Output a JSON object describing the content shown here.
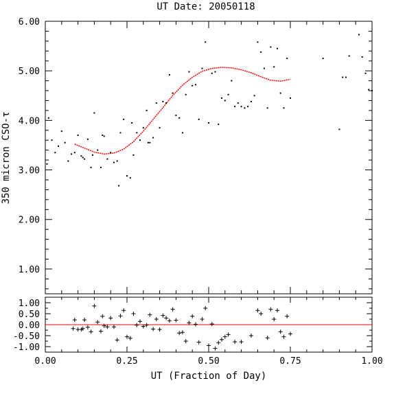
{
  "chart_data": [
    {
      "type": "scatter",
      "title": "UT Date: 20050118",
      "ylabel": "350 micron CSO-τ",
      "xlim": [
        0,
        1
      ],
      "ylim": [
        0.5,
        6.0
      ],
      "yticks": [
        "1.00",
        "2.00",
        "3.00",
        "4.00",
        "5.00",
        "6.00"
      ],
      "series": [
        {
          "mark": "dot",
          "x": [
            0.005,
            0.01,
            0.02,
            0.03,
            0.04,
            0.05,
            0.06,
            0.07,
            0.08,
            0.09,
            0.1,
            0.11,
            0.115,
            0.12,
            0.13,
            0.14,
            0.145,
            0.15,
            0.16,
            0.17,
            0.175,
            0.18,
            0.19,
            0.2,
            0.21,
            0.22,
            0.225,
            0.23,
            0.24,
            0.25,
            0.26,
            0.265,
            0.27,
            0.28,
            0.29,
            0.3,
            0.31,
            0.315,
            0.32,
            0.33,
            0.34,
            0.35,
            0.36,
            0.37,
            0.38,
            0.39,
            0.4,
            0.41,
            0.42,
            0.43,
            0.44,
            0.45,
            0.46,
            0.47,
            0.48,
            0.49,
            0.5,
            0.51,
            0.52,
            0.53,
            0.54,
            0.55,
            0.56,
            0.57,
            0.58,
            0.59,
            0.6,
            0.61,
            0.62,
            0.63,
            0.64,
            0.65,
            0.66,
            0.67,
            0.68,
            0.69,
            0.7,
            0.71,
            0.72,
            0.73,
            0.74,
            0.75,
            0.85,
            0.9,
            0.91,
            0.92,
            0.93,
            0.96,
            0.97,
            0.98,
            0.99,
            1.0
          ],
          "y": [
            3.12,
            4.05,
            3.6,
            3.35,
            3.48,
            3.78,
            3.55,
            3.18,
            3.32,
            3.35,
            3.7,
            3.28,
            3.25,
            3.22,
            3.62,
            3.05,
            3.3,
            4.15,
            3.4,
            3.05,
            3.7,
            3.68,
            3.22,
            3.35,
            3.15,
            3.18,
            2.68,
            3.75,
            4.02,
            2.88,
            2.84,
            3.95,
            3.3,
            3.75,
            3.6,
            3.85,
            4.2,
            3.55,
            3.55,
            3.65,
            4.35,
            3.85,
            4.38,
            4.35,
            4.92,
            4.55,
            4.1,
            4.05,
            3.75,
            4.52,
            4.98,
            4.7,
            4.72,
            4.02,
            5.05,
            5.58,
            3.95,
            4.95,
            4.98,
            3.92,
            4.45,
            4.4,
            4.52,
            4.8,
            4.28,
            4.35,
            4.28,
            4.25,
            4.28,
            4.38,
            4.5,
            5.58,
            5.38,
            5.05,
            4.25,
            5.48,
            5.08,
            5.45,
            4.55,
            4.25,
            5.25,
            4.45,
            5.25,
            3.82,
            4.87,
            4.87,
            5.3,
            5.73,
            5.28,
            4.95,
            4.62,
            4.6
          ]
        },
        {
          "mark": "fit-curve",
          "color": "#ff0000",
          "x": [
            0.09,
            0.12,
            0.15,
            0.18,
            0.21,
            0.24,
            0.27,
            0.3,
            0.33,
            0.36,
            0.39,
            0.42,
            0.45,
            0.48,
            0.51,
            0.54,
            0.57,
            0.6,
            0.63,
            0.66,
            0.69,
            0.72,
            0.75
          ],
          "y": [
            3.52,
            3.44,
            3.36,
            3.32,
            3.34,
            3.42,
            3.57,
            3.78,
            4.02,
            4.26,
            4.5,
            4.71,
            4.87,
            4.99,
            5.05,
            5.07,
            5.06,
            5.02,
            4.96,
            4.88,
            4.81,
            4.79,
            4.83
          ]
        }
      ]
    },
    {
      "type": "scatter",
      "xlabel": "UT (Fraction of Day)",
      "xlim": [
        0,
        1
      ],
      "ylim": [
        -1.25,
        1.25
      ],
      "xticks": [
        "0.00",
        "0.25",
        "0.50",
        "0.75",
        "1.00"
      ],
      "yticks": [
        "-1.00",
        "-0.50",
        "0.00",
        "0.50",
        "1.00"
      ],
      "series": [
        {
          "mark": "plus",
          "x": [
            0.085,
            0.09,
            0.1,
            0.11,
            0.115,
            0.12,
            0.13,
            0.14,
            0.15,
            0.16,
            0.17,
            0.175,
            0.18,
            0.19,
            0.2,
            0.21,
            0.22,
            0.23,
            0.24,
            0.25,
            0.26,
            0.27,
            0.28,
            0.29,
            0.3,
            0.31,
            0.32,
            0.33,
            0.34,
            0.35,
            0.36,
            0.37,
            0.38,
            0.39,
            0.4,
            0.41,
            0.42,
            0.43,
            0.44,
            0.45,
            0.46,
            0.47,
            0.48,
            0.49,
            0.5,
            0.51,
            0.52,
            0.53,
            0.54,
            0.55,
            0.56,
            0.58,
            0.6,
            0.63,
            0.65,
            0.66,
            0.68,
            0.69,
            0.7,
            0.71,
            0.72,
            0.73,
            0.74,
            0.75
          ],
          "y": [
            -0.18,
            0.22,
            -0.22,
            -0.22,
            -0.18,
            0.22,
            -0.12,
            -0.32,
            0.85,
            0.12,
            -0.3,
            0.38,
            -0.05,
            -0.1,
            0.3,
            -0.1,
            -0.7,
            0.4,
            0.65,
            -0.55,
            -0.62,
            0.5,
            -0.02,
            0.15,
            -0.08,
            -0.02,
            0.45,
            -0.2,
            0.25,
            -0.22,
            0.42,
            0.3,
            0.18,
            0.7,
            0.2,
            -0.38,
            -0.35,
            -0.75,
            0.08,
            0.38,
            0.02,
            -0.8,
            0.25,
            0.75,
            -0.95,
            0.03,
            -1.08,
            -0.82,
            -0.68,
            -0.55,
            -0.45,
            -0.78,
            -0.78,
            -0.5,
            0.65,
            0.5,
            -0.6,
            0.7,
            0.25,
            0.65,
            -0.32,
            -0.55,
            0.38,
            -0.42
          ]
        },
        {
          "mark": "zero-line",
          "color": "#ff0000",
          "x": [
            0,
            1
          ],
          "y": [
            0,
            0
          ]
        }
      ]
    }
  ]
}
